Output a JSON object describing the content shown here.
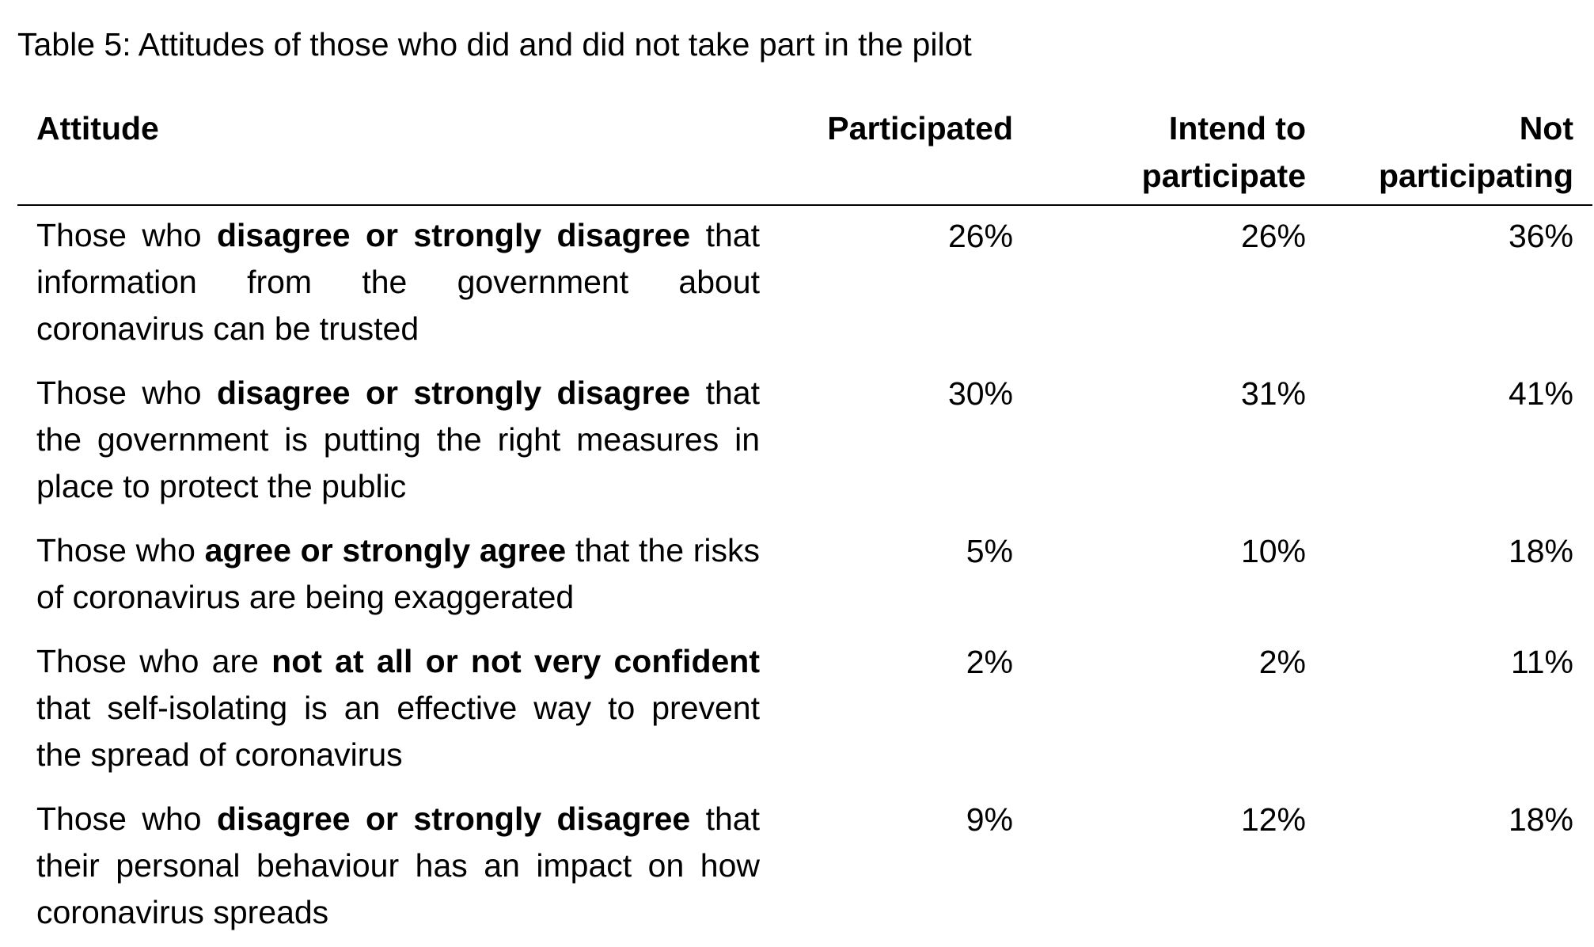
{
  "caption": "Table 5: Attitudes of those who did and did not take part in the pilot",
  "table": {
    "headers": {
      "attitude": "Attitude",
      "participated": "Participated",
      "intend_line1": "Intend to",
      "intend_line2": "participate",
      "not_line1": "Not",
      "not_line2": "participating"
    },
    "rows": [
      {
        "prefix": "Those who ",
        "emphasis": "disagree or strongly disagree",
        "suffix": " that information from the government about coronavirus can be trusted",
        "participated": "26%",
        "intend": "26%",
        "not_participating": "36%"
      },
      {
        "prefix": "Those who ",
        "emphasis": "disagree or strongly disagree",
        "suffix": " that the government is putting the right measures in place to protect the public",
        "participated": "30%",
        "intend": "31%",
        "not_participating": "41%"
      },
      {
        "prefix": "Those who ",
        "emphasis": "agree or strongly agree",
        "suffix": " that the risks of coronavirus are being exaggerated",
        "participated": "5%",
        "intend": "10%",
        "not_participating": "18%"
      },
      {
        "prefix": "Those who are ",
        "emphasis": "not at all or not very confident",
        "suffix": " that self-isolating is an effective way to prevent the spread of coronavirus",
        "participated": "2%",
        "intend": "2%",
        "not_participating": "11%"
      },
      {
        "prefix": "Those who ",
        "emphasis": "disagree or strongly disagree",
        "suffix": " that their personal behaviour has an impact on how coronavirus spreads",
        "participated": "9%",
        "intend": "12%",
        "not_participating": "18%"
      }
    ]
  }
}
